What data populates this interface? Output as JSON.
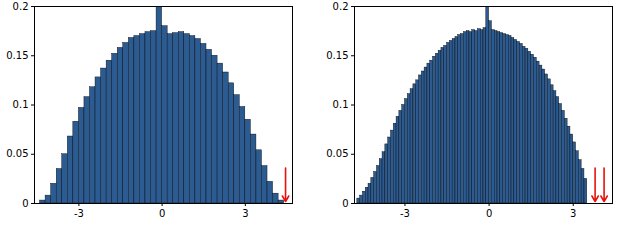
{
  "chart_data": [
    {
      "type": "histogram",
      "color": "#2b5b91",
      "bins": [
        -4.4,
        -4.2,
        -4.0,
        -3.8,
        -3.6,
        -3.4,
        -3.2,
        -3.0,
        -2.8,
        -2.6,
        -2.4,
        -2.2,
        -2.0,
        -1.8,
        -1.6,
        -1.4,
        -1.2,
        -1.0,
        -0.8,
        -0.6,
        -0.4,
        -0.2,
        0.0,
        0.2,
        0.4,
        0.6,
        0.8,
        1.0,
        1.2,
        1.4,
        1.6,
        1.8,
        2.0,
        2.2,
        2.4,
        2.6,
        2.8,
        3.0,
        3.2,
        3.4,
        3.6,
        3.8,
        4.0,
        4.2,
        4.4
      ],
      "values": [
        0.003,
        0.008,
        0.02,
        0.035,
        0.05,
        0.068,
        0.083,
        0.097,
        0.108,
        0.118,
        0.128,
        0.137,
        0.145,
        0.152,
        0.158,
        0.163,
        0.168,
        0.17,
        0.172,
        0.174,
        0.175,
        0.2,
        0.18,
        0.172,
        0.173,
        0.174,
        0.172,
        0.17,
        0.167,
        0.162,
        0.156,
        0.15,
        0.142,
        0.133,
        0.122,
        0.11,
        0.098,
        0.085,
        0.07,
        0.054,
        0.038,
        0.022,
        0.01,
        0.003
      ],
      "arrows": [
        4.45
      ],
      "xlim": [
        -4.6,
        4.7
      ],
      "ylim": [
        0,
        0.2
      ],
      "xticks": [
        -3,
        0,
        3
      ],
      "yticks": [
        0,
        0.05,
        0.1,
        0.15,
        0.2
      ]
    },
    {
      "type": "histogram",
      "color": "#2b5b91",
      "bins": [
        -4.7,
        -4.6,
        -4.5,
        -4.4,
        -4.3,
        -4.2,
        -4.1,
        -4.0,
        -3.9,
        -3.8,
        -3.7,
        -3.6,
        -3.5,
        -3.4,
        -3.3,
        -3.2,
        -3.1,
        -3.0,
        -2.9,
        -2.8,
        -2.7,
        -2.6,
        -2.5,
        -2.4,
        -2.3,
        -2.2,
        -2.1,
        -2.0,
        -1.9,
        -1.8,
        -1.7,
        -1.6,
        -1.5,
        -1.4,
        -1.3,
        -1.2,
        -1.1,
        -1.0,
        -0.9,
        -0.8,
        -0.7,
        -0.6,
        -0.5,
        -0.4,
        -0.3,
        -0.2,
        -0.1,
        0.0,
        0.1,
        0.2,
        0.3,
        0.4,
        0.5,
        0.6,
        0.7,
        0.8,
        0.9,
        1.0,
        1.1,
        1.2,
        1.3,
        1.4,
        1.5,
        1.6,
        1.7,
        1.8,
        1.9,
        2.0,
        2.1,
        2.2,
        2.3,
        2.4,
        2.5,
        2.6,
        2.7,
        2.8,
        2.9,
        3.0,
        3.1,
        3.2,
        3.3,
        3.4,
        3.5
      ],
      "values": [
        0.005,
        0.008,
        0.012,
        0.016,
        0.02,
        0.026,
        0.032,
        0.038,
        0.045,
        0.052,
        0.06,
        0.067,
        0.074,
        0.081,
        0.088,
        0.094,
        0.1,
        0.106,
        0.111,
        0.116,
        0.121,
        0.125,
        0.13,
        0.134,
        0.138,
        0.142,
        0.145,
        0.149,
        0.152,
        0.155,
        0.158,
        0.16,
        0.163,
        0.165,
        0.167,
        0.169,
        0.171,
        0.172,
        0.174,
        0.175,
        0.174,
        0.176,
        0.175,
        0.177,
        0.176,
        0.178,
        0.2,
        0.185,
        0.176,
        0.175,
        0.174,
        0.173,
        0.172,
        0.171,
        0.17,
        0.168,
        0.166,
        0.164,
        0.162,
        0.159,
        0.157,
        0.154,
        0.151,
        0.148,
        0.144,
        0.14,
        0.136,
        0.131,
        0.126,
        0.12,
        0.114,
        0.108,
        0.101,
        0.094,
        0.086,
        0.078,
        0.07,
        0.062,
        0.053,
        0.044,
        0.035,
        0.025
      ],
      "arrows": [
        3.78,
        4.1
      ],
      "xlim": [
        -4.8,
        4.4
      ],
      "ylim": [
        0,
        0.2
      ],
      "xticks": [
        -3,
        0,
        3
      ],
      "yticks": [
        0,
        0.05,
        0.1,
        0.15,
        0.2
      ]
    }
  ]
}
